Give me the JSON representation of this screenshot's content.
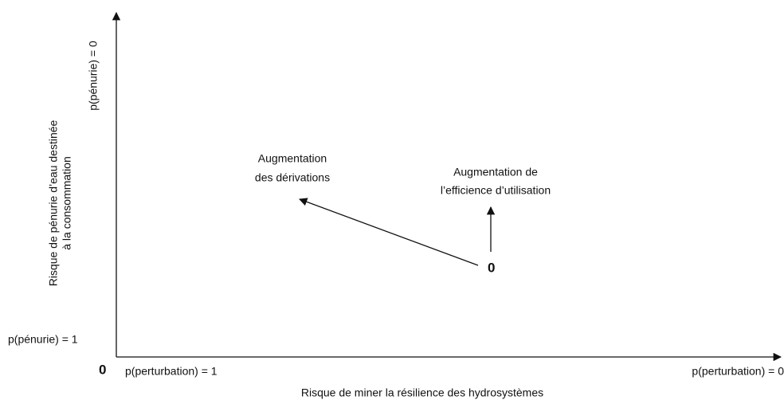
{
  "y_axis": {
    "label_lines": [
      "Risque de pénurie d’eau destinée",
      "à la consommation"
    ],
    "top_label": "p(pénurie) = 0",
    "bottom_label": "p(pénurie) = 1"
  },
  "x_axis": {
    "label": "Risque de miner la résilience des hydrosystèmes",
    "left_label": "p(perturbation) = 1",
    "right_label": "p(perturbation) = 0"
  },
  "origin_label": "0",
  "annotations": [
    {
      "lines": [
        "Augmentation",
        "des dérivations"
      ]
    },
    {
      "lines": [
        "Augmentation de",
        "l’efficience d’utilisation"
      ]
    }
  ],
  "point_label": "0"
}
